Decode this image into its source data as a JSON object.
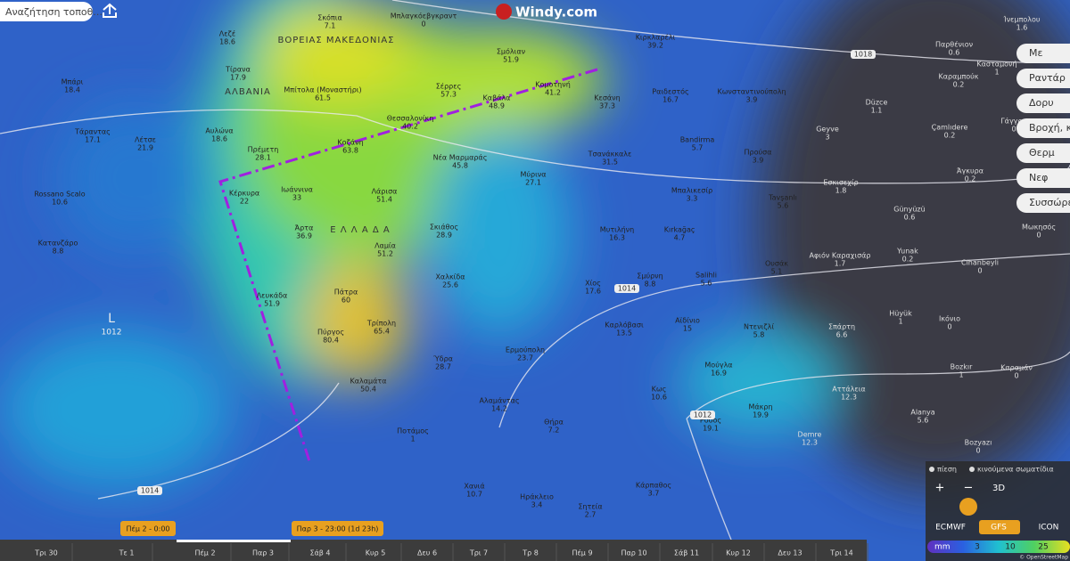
{
  "search": {
    "placeholder": "Αναζήτηση τοποθ..."
  },
  "logo": "Windy.com",
  "regions": [
    "ΒΟΡΕΙΑΣ ΜΑΚΕΔΟΝΙΑΣ",
    "ΑΛΒΑΝΙΑ",
    "Ε Λ Λ Α Δ Α"
  ],
  "cities": [
    {
      "name": "Σκόπια",
      "value": 7.1
    },
    {
      "name": "Μπλαγκόεβγκραντ",
      "value": 0
    },
    {
      "name": "Λεζέ",
      "value": 18.6
    },
    {
      "name": "Τίρανα",
      "value": 17.9
    },
    {
      "name": "Μπίτολα (Μοναστήρι)",
      "value": 61.5
    },
    {
      "name": "Σέρρες",
      "value": 57.3
    },
    {
      "name": "Σμόλιαν",
      "value": 51.9
    },
    {
      "name": "Κιρκλαρέλι",
      "value": 39.2
    },
    {
      "name": "Καβάλα",
      "value": 48.9
    },
    {
      "name": "Κομοτηνή",
      "value": 41.2
    },
    {
      "name": "Κεσάνη",
      "value": 37.3
    },
    {
      "name": "Ραιδεστός",
      "value": 16.7
    },
    {
      "name": "Κωνσταντινούπολη",
      "value": 3.9
    },
    {
      "name": "Παρθένιον",
      "value": 0.6
    },
    {
      "name": "Κασταμονή",
      "value": 1
    },
    {
      "name": "Καραμπούκ",
      "value": 0.2
    },
    {
      "name": "Düzce",
      "value": 1.1
    },
    {
      "name": "Γάγγρα",
      "value": 0
    },
    {
      "name": "Çamlıdere",
      "value": 0.2
    },
    {
      "name": "Μπάρι",
      "value": 18.4
    },
    {
      "name": "Αυλώνα",
      "value": 18.6
    },
    {
      "name": "Πρέμετη",
      "value": 28.1
    },
    {
      "name": "Θεσσαλονίκη",
      "value": 40.2
    },
    {
      "name": "Κοζάνη",
      "value": 63.8
    },
    {
      "name": "Νέα Μαρμαράς",
      "value": 45.8
    },
    {
      "name": "Τσανάκκαλε",
      "value": 31.5
    },
    {
      "name": "Bandirma",
      "value": 5.7
    },
    {
      "name": "Προύσα",
      "value": 3.9
    },
    {
      "name": "Geyve",
      "value": 3
    },
    {
      "name": "Άγκυρα",
      "value": 0.2
    },
    {
      "name": "Εσκισεχίρ",
      "value": 1.8
    },
    {
      "name": "Τάραντας",
      "value": 17.1
    },
    {
      "name": "Λέτσε",
      "value": 21.9
    },
    {
      "name": "Rossano Scalo",
      "value": 10.6
    },
    {
      "name": "Κέρκυρα",
      "value": 22
    },
    {
      "name": "Ιωάννινα",
      "value": 33
    },
    {
      "name": "Λάρισα",
      "value": 51.4
    },
    {
      "name": "Μύρινα",
      "value": 27.1
    },
    {
      "name": "Μπαλικεσίρ",
      "value": 3.3
    },
    {
      "name": "Tavşanlı",
      "value": 5.6
    },
    {
      "name": "Günyüzü",
      "value": 0.6
    },
    {
      "name": "Κατανζάρο",
      "value": 8.8
    },
    {
      "name": "Άρτα",
      "value": 36.9
    },
    {
      "name": "Σκιάθος",
      "value": 28.9
    },
    {
      "name": "Μυτιλήνη",
      "value": 16.3
    },
    {
      "name": "Kırkağaç",
      "value": 4.7
    },
    {
      "name": "Λαμία",
      "value": 51.2
    },
    {
      "name": "Salihli",
      "value": 5.6
    },
    {
      "name": "Ουσάκ",
      "value": 5.1
    },
    {
      "name": "Αφιόν Καραχισάρ",
      "value": 1.7
    },
    {
      "name": "Yunak",
      "value": 0.2
    },
    {
      "name": "Cihanbeyli",
      "value": 0
    },
    {
      "name": "Μωκησός",
      "value": 0
    },
    {
      "name": "Χαλκίδα",
      "value": 25.6
    },
    {
      "name": "Λευκάδα",
      "value": 51.9
    },
    {
      "name": "Πάτρα",
      "value": 60
    },
    {
      "name": "Χίος",
      "value": 17.6
    },
    {
      "name": "Σμύρνη",
      "value": 8.8
    },
    {
      "name": "Αϊδίνιο",
      "value": 15
    },
    {
      "name": "Καρλόβασι",
      "value": 13.5
    },
    {
      "name": "Ντενιζλί",
      "value": 5.8
    },
    {
      "name": "Σπάρτη",
      "value": 6.6
    },
    {
      "name": "Hüyük",
      "value": 1
    },
    {
      "name": "Ικόνιο",
      "value": 0
    },
    {
      "name": "Πύργος",
      "value": 80.4
    },
    {
      "name": "Τρίπολη",
      "value": 65.4
    },
    {
      "name": "Ερμούπολη",
      "value": 23.7
    },
    {
      "name": "Ύδρα",
      "value": 28.7
    },
    {
      "name": "Μούγλα",
      "value": 16.9
    },
    {
      "name": "Bozkır",
      "value": 1
    },
    {
      "name": "Καραμάν",
      "value": 0
    },
    {
      "name": "Καλαμάτα",
      "value": 50.4
    },
    {
      "name": "Κως",
      "value": 10.6
    },
    {
      "name": "Αττάλεια",
      "value": 12.3
    },
    {
      "name": "Αλαμάντας",
      "value": 14.2
    },
    {
      "name": "Μάκρη",
      "value": 19.9
    },
    {
      "name": "Θήρα",
      "value": 7.2
    },
    {
      "name": "Ρόδος",
      "value": 19.1
    },
    {
      "name": "Alanya",
      "value": 5.6
    },
    {
      "name": "Demre",
      "value": 12.3
    },
    {
      "name": "Ποτάμος",
      "value": 1
    },
    {
      "name": "Bozyazı",
      "value": 0
    },
    {
      "name": "Χανιά",
      "value": 10.7
    },
    {
      "name": "Ηράκλειο",
      "value": 3.4
    },
    {
      "name": "Κάρπαθος",
      "value": 3.7
    },
    {
      "name": "Σητεία",
      "value": 2.7
    },
    {
      "name": "Ίνεμπολου",
      "value": 1.6
    }
  ],
  "pressure_low": {
    "label": "L",
    "value": 1012
  },
  "isobars": [
    1018,
    1014,
    1014,
    1012
  ],
  "layer_buttons": [
    "Με",
    "Ραντάρ",
    "Δορυ",
    "Βροχή, κατ",
    "Θερμ",
    "Νεφ",
    "Συσσώρευση"
  ],
  "toggles": [
    "πίεση",
    "κινούμενα σωματίδια"
  ],
  "controls": [
    "+",
    "−",
    "3D"
  ],
  "models": [
    "ECMWF",
    "GFS",
    "ICON"
  ],
  "legend": {
    "unit": "mm",
    "ticks": [
      3,
      10,
      25
    ]
  },
  "timeline": {
    "start": "Πέμ 2 - 0:00",
    "end": "Παρ 3 - 23:00 (1d 23h)",
    "days": [
      "Τρι 30",
      "Τε 1",
      "Πέμ 2",
      "Παρ 3",
      "Σάβ 4",
      "Κυρ 5",
      "Δευ 6",
      "Τρι 7",
      "Τρ 8",
      "Πέμ 9",
      "Παρ 10",
      "Σάβ 11",
      "Κυρ 12",
      "Δευ 13",
      "Τρι 14"
    ]
  },
  "attribution": "© OpenStreetMap"
}
